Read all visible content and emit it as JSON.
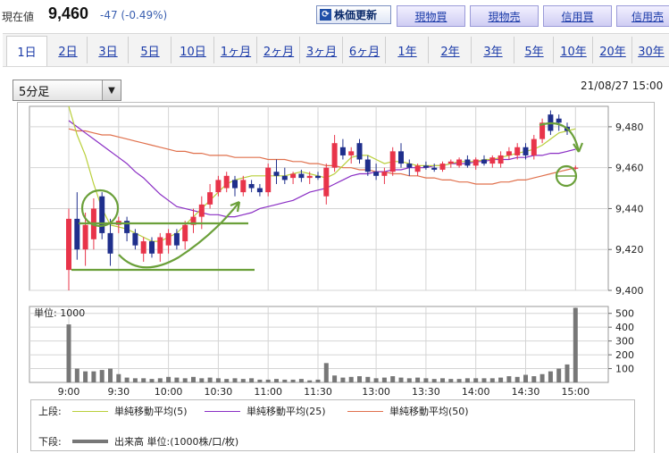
{
  "header": {
    "price_label": "現在値",
    "price": "9,460",
    "change": "-47 (-0.49%)",
    "refresh_label": "株価更新",
    "refresh_icon": "refresh-icon",
    "trade_buttons": [
      "現物買",
      "現物売",
      "信用買",
      "信用売"
    ]
  },
  "tabs": [
    "1日",
    "2日",
    "3日",
    "5日",
    "10日",
    "1ヶ月",
    "2ヶ月",
    "3ヶ月",
    "6ヶ月",
    "1年",
    "2年",
    "3年",
    "5年",
    "10年",
    "20年",
    "30年"
  ],
  "active_tab": "1日",
  "interval_select": "5分足",
  "datetime": "21/08/27 15:00",
  "legend": {
    "upper_label": "上段:",
    "lower_label": "下段:",
    "items": [
      {
        "name": "単純移動平均(5)",
        "color": "#b9cf3a"
      },
      {
        "name": "単純移動平均(25)",
        "color": "#8a2ec4"
      },
      {
        "name": "単純移動平均(50)",
        "color": "#e0704c"
      }
    ],
    "volume": {
      "name": "出来高 単位:(1000株/口/枚)",
      "color": "#777777"
    }
  },
  "colors": {
    "up": "#e8344a",
    "down": "#1f2f8c",
    "volume": "#777777",
    "annotation": "#6ba03a"
  },
  "chart_data": [
    {
      "type": "candlestick",
      "title": "",
      "ylim": [
        9400,
        9490
      ],
      "y_ticks": [
        "9,400",
        "9,420",
        "9,440",
        "9,460",
        "9,480"
      ],
      "x_ticks": [
        "9:00",
        "9:30",
        "10:00",
        "10:30",
        "11:00",
        "11:30",
        "13:00",
        "13:30",
        "14:00",
        "14:30",
        "15:00"
      ],
      "grid": true,
      "candles": [
        {
          "time": "9:00",
          "open": 9410,
          "high": 9440,
          "low": 9400,
          "close": 9435
        },
        {
          "time": "9:05",
          "open": 9435,
          "high": 9448,
          "low": 9415,
          "close": 9420
        },
        {
          "time": "9:10",
          "open": 9420,
          "high": 9438,
          "low": 9412,
          "close": 9432
        },
        {
          "time": "9:15",
          "open": 9425,
          "high": 9445,
          "low": 9420,
          "close": 9440
        },
        {
          "time": "9:20",
          "open": 9446,
          "high": 9448,
          "low": 9425,
          "close": 9428
        },
        {
          "time": "9:25",
          "open": 9428,
          "high": 9435,
          "low": 9412,
          "close": 9418
        },
        {
          "time": "9:30",
          "open": 9432,
          "high": 9436,
          "low": 9428,
          "close": 9434
        },
        {
          "time": "9:35",
          "open": 9434,
          "high": 9436,
          "low": 9424,
          "close": 9428
        },
        {
          "time": "9:40",
          "open": 9428,
          "high": 9430,
          "low": 9420,
          "close": 9422
        },
        {
          "time": "9:45",
          "open": 9418,
          "high": 9426,
          "low": 9414,
          "close": 9424
        },
        {
          "time": "9:50",
          "open": 9424,
          "high": 9426,
          "low": 9416,
          "close": 9418
        },
        {
          "time": "9:55",
          "open": 9418,
          "high": 9428,
          "low": 9414,
          "close": 9426
        },
        {
          "time": "10:00",
          "open": 9422,
          "high": 9430,
          "low": 9418,
          "close": 9428
        },
        {
          "time": "10:05",
          "open": 9428,
          "high": 9430,
          "low": 9420,
          "close": 9422
        },
        {
          "time": "10:10",
          "open": 9424,
          "high": 9434,
          "low": 9420,
          "close": 9432
        },
        {
          "time": "10:15",
          "open": 9432,
          "high": 9440,
          "low": 9428,
          "close": 9436
        },
        {
          "time": "10:20",
          "open": 9436,
          "high": 9446,
          "low": 9430,
          "close": 9442
        },
        {
          "time": "10:25",
          "open": 9442,
          "high": 9452,
          "low": 9440,
          "close": 9448
        },
        {
          "time": "10:30",
          "open": 9448,
          "high": 9456,
          "low": 9446,
          "close": 9454
        },
        {
          "time": "10:35",
          "open": 9450,
          "high": 9458,
          "low": 9448,
          "close": 9456
        },
        {
          "time": "10:40",
          "open": 9454,
          "high": 9456,
          "low": 9446,
          "close": 9450
        },
        {
          "time": "10:45",
          "open": 9448,
          "high": 9456,
          "low": 9446,
          "close": 9454
        },
        {
          "time": "10:50",
          "open": 9452,
          "high": 9454,
          "low": 9448,
          "close": 9450
        },
        {
          "time": "10:55",
          "open": 9450,
          "high": 9452,
          "low": 9446,
          "close": 9448
        },
        {
          "time": "11:00",
          "open": 9448,
          "high": 9462,
          "low": 9446,
          "close": 9460
        },
        {
          "time": "11:05",
          "open": 9458,
          "high": 9464,
          "low": 9452,
          "close": 9456
        },
        {
          "time": "11:10",
          "open": 9456,
          "high": 9460,
          "low": 9452,
          "close": 9454
        },
        {
          "time": "11:15",
          "open": 9455,
          "high": 9458,
          "low": 9452,
          "close": 9457
        },
        {
          "time": "11:20",
          "open": 9457,
          "high": 9459,
          "low": 9453,
          "close": 9455
        },
        {
          "time": "11:25",
          "open": 9455,
          "high": 9458,
          "low": 9452,
          "close": 9456
        },
        {
          "time": "11:30",
          "open": 9456,
          "high": 9458,
          "low": 9454,
          "close": 9455
        },
        {
          "time": "12:30",
          "open": 9446,
          "high": 9462,
          "low": 9442,
          "close": 9460
        },
        {
          "time": "12:35",
          "open": 9460,
          "high": 9476,
          "low": 9458,
          "close": 9472
        },
        {
          "time": "12:40",
          "open": 9470,
          "high": 9474,
          "low": 9464,
          "close": 9466
        },
        {
          "time": "12:45",
          "open": 9466,
          "high": 9470,
          "low": 9462,
          "close": 9468
        },
        {
          "time": "12:50",
          "open": 9472,
          "high": 9474,
          "low": 9462,
          "close": 9464
        },
        {
          "time": "12:55",
          "open": 9464,
          "high": 9466,
          "low": 9456,
          "close": 9458
        },
        {
          "time": "13:00",
          "open": 9458,
          "high": 9462,
          "low": 9454,
          "close": 9456
        },
        {
          "time": "13:05",
          "open": 9456,
          "high": 9460,
          "low": 9452,
          "close": 9458
        },
        {
          "time": "13:10",
          "open": 9458,
          "high": 9470,
          "low": 9456,
          "close": 9468
        },
        {
          "time": "13:15",
          "open": 9468,
          "high": 9472,
          "low": 9460,
          "close": 9462
        },
        {
          "time": "13:20",
          "open": 9462,
          "high": 9464,
          "low": 9456,
          "close": 9460
        },
        {
          "time": "13:25",
          "open": 9458,
          "high": 9462,
          "low": 9456,
          "close": 9461
        },
        {
          "time": "13:30",
          "open": 9461,
          "high": 9463,
          "low": 9459,
          "close": 9460
        },
        {
          "time": "13:35",
          "open": 9460,
          "high": 9462,
          "low": 9458,
          "close": 9459
        },
        {
          "time": "13:40",
          "open": 9459,
          "high": 9463,
          "low": 9458,
          "close": 9462
        },
        {
          "time": "13:45",
          "open": 9462,
          "high": 9464,
          "low": 9460,
          "close": 9463
        },
        {
          "time": "13:50",
          "open": 9461,
          "high": 9465,
          "low": 9460,
          "close": 9464
        },
        {
          "time": "13:55",
          "open": 9464,
          "high": 9466,
          "low": 9460,
          "close": 9461
        },
        {
          "time": "14:00",
          "open": 9461,
          "high": 9465,
          "low": 9459,
          "close": 9464
        },
        {
          "time": "14:05",
          "open": 9464,
          "high": 9466,
          "low": 9461,
          "close": 9462
        },
        {
          "time": "14:10",
          "open": 9462,
          "high": 9466,
          "low": 9460,
          "close": 9465
        },
        {
          "time": "14:15",
          "open": 9462,
          "high": 9468,
          "low": 9460,
          "close": 9466
        },
        {
          "time": "14:20",
          "open": 9466,
          "high": 9470,
          "low": 9464,
          "close": 9468
        },
        {
          "time": "14:25",
          "open": 9466,
          "high": 9472,
          "low": 9464,
          "close": 9470
        },
        {
          "time": "14:30",
          "open": 9470,
          "high": 9472,
          "low": 9464,
          "close": 9466
        },
        {
          "time": "14:35",
          "open": 9466,
          "high": 9476,
          "low": 9464,
          "close": 9474
        },
        {
          "time": "14:40",
          "open": 9474,
          "high": 9484,
          "low": 9472,
          "close": 9482
        },
        {
          "time": "14:45",
          "open": 9486,
          "high": 9488,
          "low": 9476,
          "close": 9478
        },
        {
          "time": "14:50",
          "open": 9484,
          "high": 9486,
          "low": 9478,
          "close": 9482
        },
        {
          "time": "14:55",
          "open": 9480,
          "high": 9482,
          "low": 9476,
          "close": 9478
        },
        {
          "time": "15:00",
          "open": 9460,
          "high": 9461,
          "low": 9459,
          "close": 9460
        }
      ],
      "ma5": [
        9490,
        9476,
        9466,
        9452,
        9440,
        9432,
        9431,
        9430,
        9428,
        9426,
        9424,
        9424,
        9426,
        9428,
        9432,
        9436,
        9440,
        9444,
        9448,
        9452,
        9454,
        9455,
        9456,
        9456,
        9456,
        9456,
        9456,
        9457,
        9458,
        9457,
        9456,
        9455,
        9457,
        9461,
        9465,
        9466,
        9466,
        9464,
        9462,
        9463,
        9463,
        9462,
        9461,
        9461,
        9461,
        9461,
        9462,
        9463,
        9463,
        9463,
        9464,
        9464,
        9465,
        9466,
        9467,
        9468,
        9469,
        9471,
        9474,
        9477,
        9478,
        9479
      ],
      "ma25": [
        9483,
        9480,
        9477,
        9474,
        9471,
        9468,
        9465,
        9462,
        9458,
        9455,
        9451,
        9447,
        9444,
        9441,
        9440,
        9439,
        9438,
        9437,
        9437,
        9436,
        9436,
        9437,
        9438,
        9440,
        9441,
        9442,
        9443,
        9444,
        9446,
        9448,
        9449,
        9450,
        9452,
        9454,
        9456,
        9457,
        9457,
        9458,
        9458,
        9459,
        9459,
        9460,
        9460,
        9460,
        9461,
        9461,
        9462,
        9462,
        9462,
        9463,
        9463,
        9464,
        9464,
        9464,
        9465,
        9465,
        9466,
        9466,
        9467,
        9467,
        9468,
        9469
      ],
      "ma50": [
        9479,
        9478,
        9478,
        9477,
        9476,
        9476,
        9475,
        9474,
        9473,
        9472,
        9471,
        9470,
        9469,
        9468,
        9468,
        9467,
        9467,
        9466,
        9466,
        9466,
        9465,
        9465,
        9465,
        9465,
        9464,
        9464,
        9464,
        9463,
        9463,
        9462,
        9462,
        9461,
        9461,
        9460,
        9460,
        9459,
        9459,
        9458,
        9458,
        9457,
        9457,
        9456,
        9456,
        9455,
        9455,
        9454,
        9454,
        9453,
        9453,
        9452,
        9452,
        9452,
        9453,
        9453,
        9454,
        9454,
        9455,
        9456,
        9457,
        9458,
        9459,
        9460
      ]
    },
    {
      "type": "bar",
      "title": "",
      "unit_label": "単位: 1000",
      "ylim": [
        0,
        550
      ],
      "y_ticks": [
        "100",
        "200",
        "300",
        "400",
        "500"
      ],
      "values": [
        420,
        100,
        80,
        80,
        90,
        100,
        60,
        35,
        30,
        30,
        25,
        30,
        40,
        35,
        30,
        40,
        30,
        35,
        30,
        25,
        30,
        25,
        30,
        20,
        20,
        25,
        20,
        20,
        25,
        15,
        20,
        140,
        50,
        35,
        40,
        45,
        40,
        30,
        35,
        45,
        35,
        30,
        35,
        30,
        25,
        30,
        25,
        25,
        30,
        30,
        30,
        30,
        35,
        45,
        40,
        55,
        45,
        60,
        80,
        100,
        130,
        540
      ]
    }
  ]
}
